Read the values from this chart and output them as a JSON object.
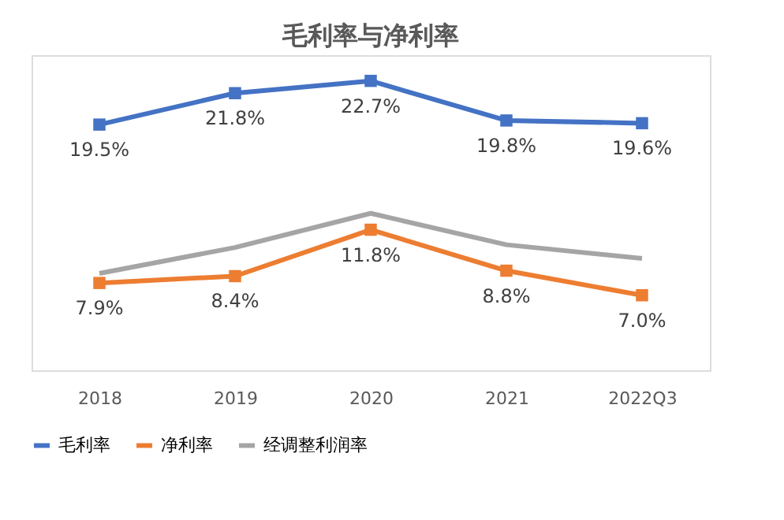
{
  "chart_data": {
    "type": "line",
    "title": "毛利率与净利率",
    "categories": [
      "2018",
      "2019",
      "2020",
      "2021",
      "2022Q3"
    ],
    "series": [
      {
        "name": "毛利率",
        "color": "#4472c4",
        "marker": "square",
        "values": [
          19.5,
          21.8,
          22.7,
          19.8,
          19.6
        ],
        "value_labels": [
          "19.5%",
          "21.8%",
          "22.7%",
          "19.8%",
          "19.6%"
        ]
      },
      {
        "name": "净利率",
        "color": "#ed7d31",
        "marker": "square",
        "values": [
          7.9,
          8.4,
          11.8,
          8.8,
          7.0
        ],
        "value_labels": [
          "7.9%",
          "8.4%",
          "11.8%",
          "8.8%",
          "7.0%"
        ]
      },
      {
        "name": "经调整利润率",
        "color": "#a5a5a5",
        "marker": "none",
        "values": [
          8.6,
          10.5,
          13.0,
          10.7,
          9.7
        ]
      }
    ],
    "legend": "bottom",
    "grid": false,
    "line_style": "solid"
  }
}
